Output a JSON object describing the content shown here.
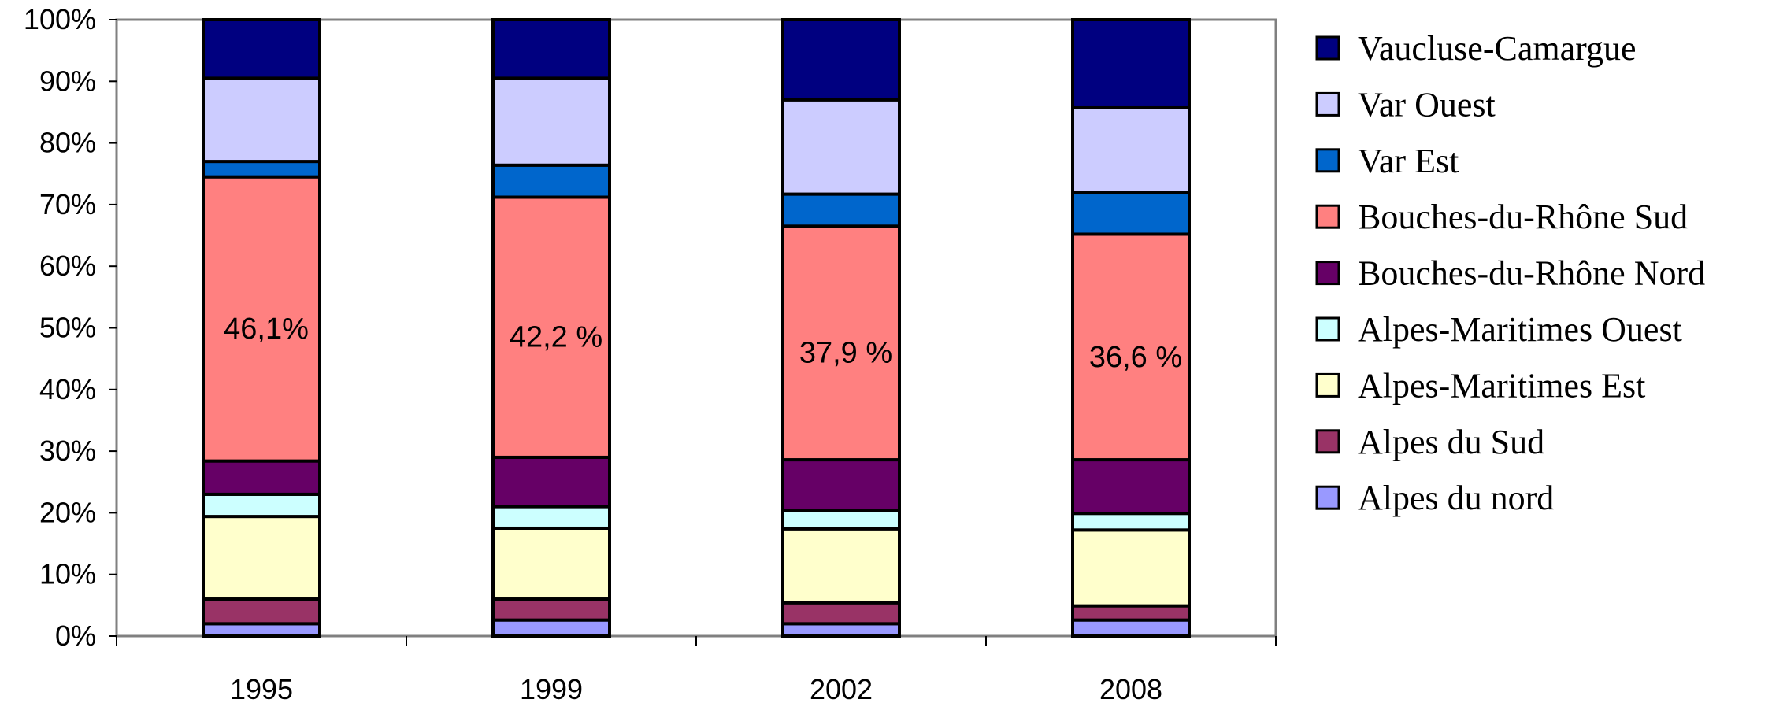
{
  "chart_data": {
    "type": "bar",
    "stacked": true,
    "normalized": true,
    "categories": [
      "1995",
      "1999",
      "2002",
      "2008"
    ],
    "ylim": [
      0,
      100
    ],
    "y_ticks": [
      "0%",
      "10%",
      "20%",
      "30%",
      "40%",
      "50%",
      "60%",
      "70%",
      "80%",
      "90%",
      "100%"
    ],
    "grid": false,
    "legend_position": "right",
    "series": [
      {
        "name": "Alpes du nord",
        "color": "#9999ff",
        "values": [
          2.0,
          2.6,
          2.0,
          2.6
        ]
      },
      {
        "name": "Alpes du Sud",
        "color": "#993366",
        "values": [
          4.0,
          3.4,
          3.4,
          2.3
        ]
      },
      {
        "name": "Alpes-Maritimes Est",
        "color": "#ffffcc",
        "values": [
          13.4,
          11.5,
          12.0,
          12.3
        ]
      },
      {
        "name": "Alpes-Maritimes Ouest",
        "color": "#ccffff",
        "values": [
          3.6,
          3.5,
          3.0,
          2.7
        ]
      },
      {
        "name": "Bouches-du-Rhône Nord",
        "color": "#660066",
        "values": [
          5.4,
          8.0,
          8.2,
          8.7
        ]
      },
      {
        "name": "Bouches-du-Rhône Sud",
        "color": "#ff8080",
        "values": [
          46.1,
          42.2,
          37.9,
          36.6
        ]
      },
      {
        "name": "Var Est",
        "color": "#0066cc",
        "values": [
          2.5,
          5.2,
          5.2,
          6.8
        ]
      },
      {
        "name": "Var Ouest",
        "color": "#ccccff",
        "values": [
          13.5,
          14.1,
          15.3,
          13.7
        ]
      },
      {
        "name": "Vaucluse-Camargue",
        "color": "#000080",
        "values": [
          9.5,
          9.5,
          13.0,
          14.3
        ]
      }
    ],
    "data_labels": [
      {
        "category": "1995",
        "series": "Bouches-du-Rhône Sud",
        "text": "46,1%"
      },
      {
        "category": "1999",
        "series": "Bouches-du-Rhône Sud",
        "text": "42,2 %"
      },
      {
        "category": "2002",
        "series": "Bouches-du-Rhône Sud",
        "text": "37,9 %"
      },
      {
        "category": "2008",
        "series": "Bouches-du-Rhône Sud",
        "text": "36,6 %"
      }
    ],
    "legend_order": [
      "Vaucluse-Camargue",
      "Var Ouest",
      "Var Est",
      "Bouches-du-Rhône Sud",
      "Bouches-du-Rhône Nord",
      "Alpes-Maritimes Ouest",
      "Alpes-Maritimes Est",
      "Alpes du Sud",
      "Alpes du nord"
    ]
  }
}
